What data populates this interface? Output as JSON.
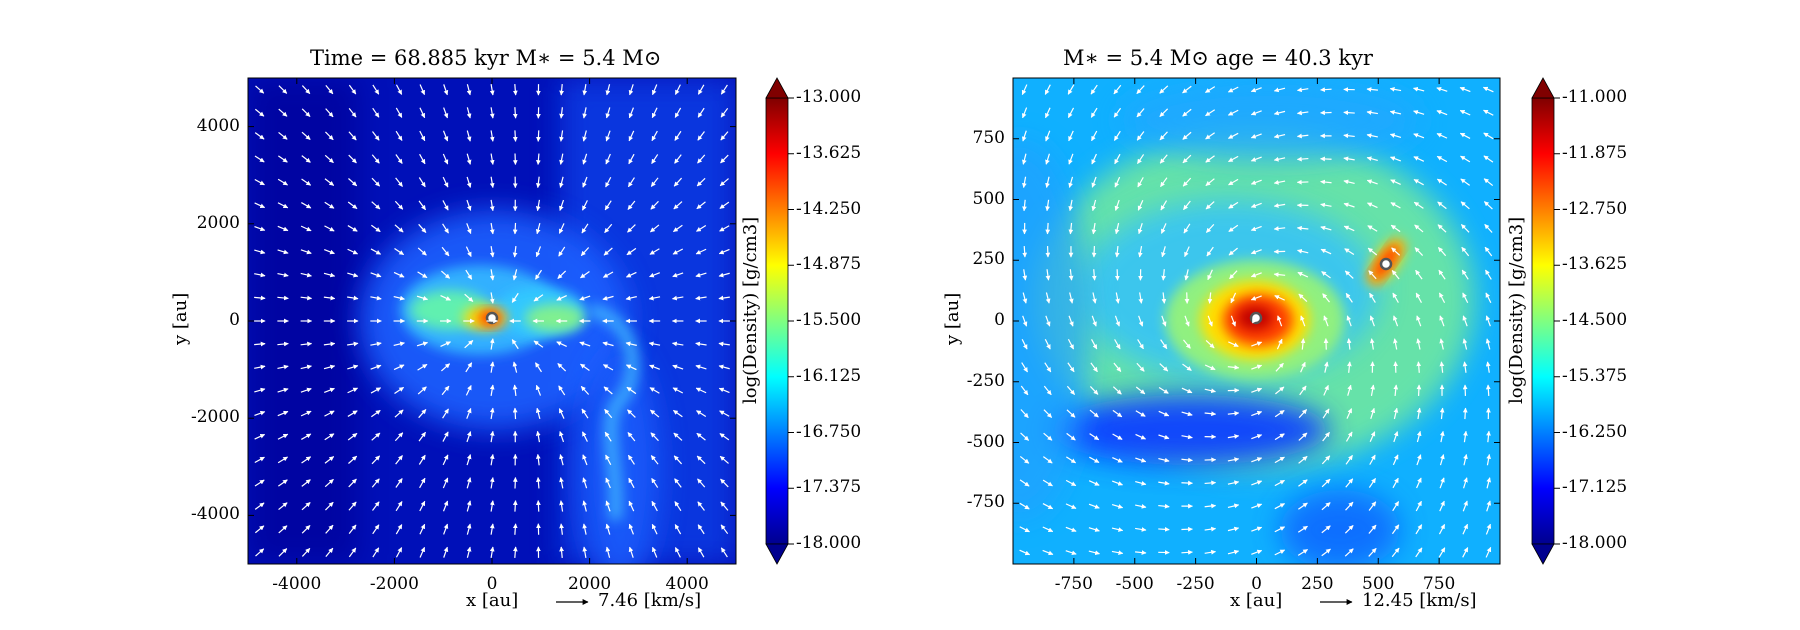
{
  "chart_data": [
    {
      "type": "heatmap",
      "title": "Time = 68.885 kyr    M∗ = 5.4 M⊙",
      "xlabel": "x [au]",
      "ylabel": "y [au]",
      "xlim": [
        -5000,
        5000
      ],
      "ylim": [
        -5000,
        5000
      ],
      "x_ticks": [
        -4000,
        -2000,
        0,
        2000,
        4000
      ],
      "y_ticks": [
        -4000,
        -2000,
        0,
        2000,
        4000
      ],
      "x_tick_labels": [
        "-4000",
        "-2000",
        "0",
        "2000",
        "4000"
      ],
      "y_tick_labels": [
        "-4000",
        "-2000",
        "0",
        "2000",
        "4000"
      ],
      "colorbar": {
        "label": "log(Density) [g/cm3]",
        "range": [
          -18.0,
          -13.0
        ],
        "ticks": [
          "-13.000",
          "-13.625",
          "-14.250",
          "-14.875",
          "-15.500",
          "-16.125",
          "-16.750",
          "-17.375",
          "-18.000"
        ]
      },
      "vector_key": {
        "label": "7.46 [km/s]"
      },
      "sinks": [
        {
          "x": 0,
          "y": 0
        }
      ],
      "grid": false
    },
    {
      "type": "heatmap",
      "title": "M∗ = 5.4 M⊙          age = 40.3 kyr",
      "xlabel": "x [au]",
      "ylabel": "y [au]",
      "xlim": [
        -1000,
        1000
      ],
      "ylim": [
        -1000,
        1000
      ],
      "x_ticks": [
        -750,
        -500,
        -250,
        0,
        250,
        500,
        750
      ],
      "y_ticks": [
        -750,
        -500,
        -250,
        0,
        250,
        500,
        750
      ],
      "x_tick_labels": [
        "-750",
        "-500",
        "-250",
        "0",
        "250",
        "500",
        "750"
      ],
      "y_tick_labels": [
        "-750",
        "-500",
        "-250",
        "0",
        "250",
        "500",
        "750"
      ],
      "colorbar": {
        "label": "log(Density) [g/cm3]",
        "range": [
          -18.0,
          -11.0
        ],
        "ticks": [
          "-11.000",
          "-11.875",
          "-12.750",
          "-13.625",
          "-14.500",
          "-15.375",
          "-16.250",
          "-17.125",
          "-18.000"
        ]
      },
      "vector_key": {
        "label": "12.45 [km/s]"
      },
      "sinks": [
        {
          "x": 0,
          "y": 0
        },
        {
          "x": 530,
          "y": 220
        }
      ],
      "grid": false
    }
  ]
}
